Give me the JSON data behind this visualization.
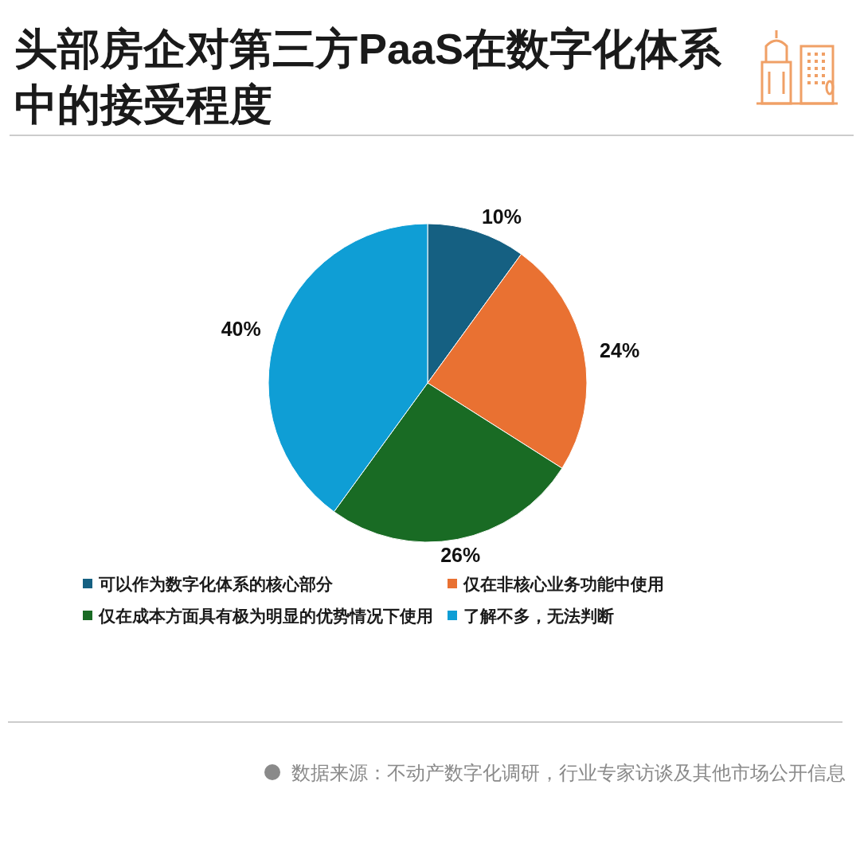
{
  "chart_data": {
    "type": "pie",
    "title": "头部房企对第三方PaaS在数字化体系中的接受程度",
    "categories": [
      "可以作为数字化体系的核心部分",
      "仅在非核心业务功能中使用",
      "仅在成本方面具有极为明显的优势情况下使用",
      "了解不多，无法判断"
    ],
    "values": [
      10,
      24,
      26,
      40
    ],
    "colors": [
      "#156082",
      "#e97132",
      "#196b24",
      "#0f9ed5"
    ],
    "value_labels": [
      "10%",
      "24%",
      "26%",
      "40%"
    ],
    "legend": "bottom",
    "annotations": [
      "数据来源：不动产数字化调研，行业专家访谈及其他市场公开信息"
    ]
  }
}
